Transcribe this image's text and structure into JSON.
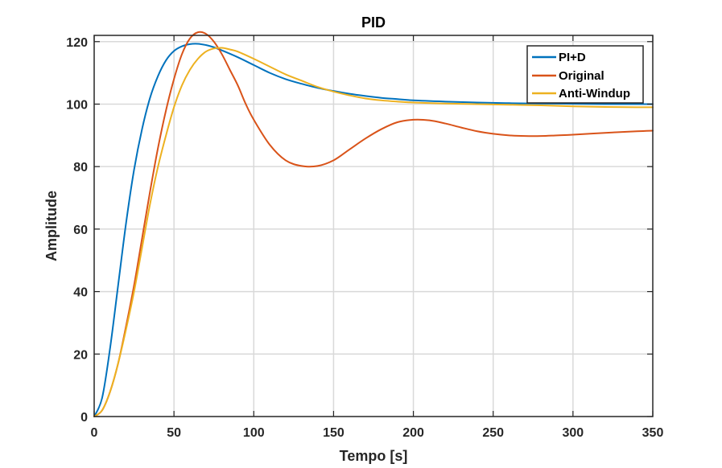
{
  "chart_data": {
    "type": "line",
    "title": "PID",
    "xlabel": "Tempo [s]",
    "ylabel": "Amplitude",
    "xlim": [
      0,
      350
    ],
    "ylim": [
      0,
      122
    ],
    "xticks": [
      0,
      50,
      100,
      150,
      200,
      250,
      300,
      350
    ],
    "yticks": [
      0,
      20,
      40,
      60,
      80,
      100,
      120
    ],
    "xtick_labels": [
      "0",
      "50",
      "100",
      "150",
      "200",
      "250",
      "300",
      "350"
    ],
    "ytick_labels": [
      "0",
      "20",
      "40",
      "60",
      "80",
      "100",
      "120"
    ],
    "grid": true,
    "legend_position": "top-right",
    "series": [
      {
        "name": "PI+D",
        "color": "#0072BD",
        "x": [
          0,
          5,
          10,
          15,
          20,
          25,
          30,
          35,
          40,
          45,
          50,
          55,
          60,
          65,
          70,
          75,
          80,
          90,
          100,
          110,
          120,
          130,
          140,
          150,
          160,
          170,
          180,
          190,
          200,
          220,
          240,
          260,
          280,
          300,
          320,
          340,
          350
        ],
        "values": [
          0,
          6,
          22,
          42,
          62,
          79,
          92,
          102,
          109,
          114,
          117,
          118.5,
          119.2,
          119.3,
          118.9,
          118.2,
          117.2,
          115,
          112.5,
          110,
          108,
          106.5,
          105.2,
          104.2,
          103.3,
          102.6,
          102,
          101.6,
          101.2,
          100.8,
          100.5,
          100.3,
          100.2,
          100.1,
          100,
          100,
          100
        ]
      },
      {
        "name": "Original",
        "color": "#D95319",
        "x": [
          0,
          5,
          10,
          15,
          20,
          25,
          30,
          35,
          40,
          45,
          50,
          55,
          60,
          65,
          70,
          75,
          80,
          85,
          90,
          95,
          100,
          110,
          120,
          130,
          140,
          150,
          160,
          170,
          180,
          190,
          200,
          210,
          220,
          230,
          240,
          250,
          260,
          270,
          280,
          290,
          300,
          320,
          340,
          350
        ],
        "values": [
          0,
          2,
          8,
          17,
          29,
          42,
          57,
          72,
          86,
          98,
          108,
          116,
          121,
          123,
          122.5,
          120,
          116,
          111,
          106,
          100,
          95,
          87,
          82,
          80.2,
          80.2,
          82,
          85.5,
          89,
          92,
          94.2,
          95,
          94.8,
          93.8,
          92.5,
          91.3,
          90.5,
          90,
          89.8,
          89.8,
          90,
          90.2,
          90.8,
          91.3,
          91.5
        ]
      },
      {
        "name": "Anti-Windup",
        "color": "#EDB120",
        "x": [
          0,
          5,
          10,
          15,
          20,
          25,
          30,
          35,
          40,
          45,
          50,
          55,
          60,
          65,
          70,
          75,
          80,
          85,
          90,
          100,
          110,
          120,
          130,
          140,
          150,
          160,
          170,
          180,
          190,
          200,
          220,
          240,
          260,
          280,
          300,
          320,
          340,
          350
        ],
        "values": [
          0,
          2,
          8,
          17,
          28,
          40,
          54,
          68,
          80,
          90,
          99,
          106,
          111,
          114.5,
          116.8,
          117.8,
          118,
          117.5,
          116.8,
          114.5,
          112,
          109.5,
          107.5,
          105.5,
          104,
          102.8,
          101.8,
          101.2,
          100.8,
          100.5,
          100.2,
          100,
          99.8,
          99.6,
          99.3,
          99.1,
          99,
          99
        ]
      }
    ]
  }
}
